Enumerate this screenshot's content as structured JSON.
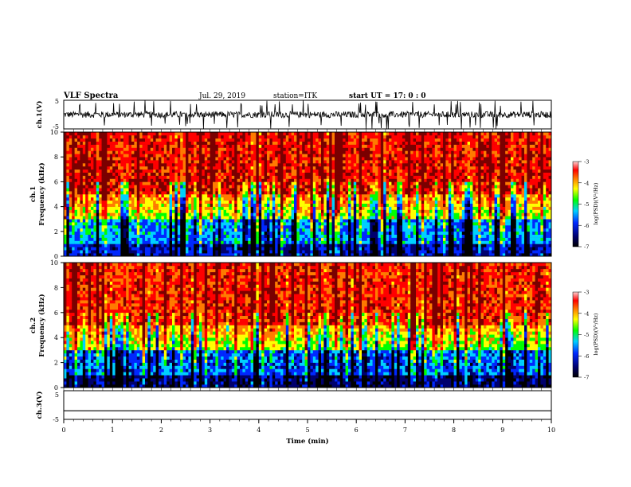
{
  "header": {
    "title": "VLF Spectra",
    "date": "Jul. 29, 2019",
    "station": "station=ITK",
    "start": "start  UT =  17: 0 : 0"
  },
  "chart_data": [
    {
      "type": "line",
      "panel": "ch1-waveform",
      "ylabel": "ch.1(V)",
      "ylim": [
        -5,
        5
      ],
      "yticks": [
        5,
        -5
      ],
      "xlim": [
        0,
        10
      ],
      "description_of_shape": "noisy baseline near 0 V with frequent spikes to about ±5 V",
      "baseline_v": 0,
      "spike_range_v": [
        -5,
        5
      ]
    },
    {
      "type": "heatmap",
      "panel": "ch1-spectrogram",
      "ylabel": "ch.1",
      "ylabel2": "Frequency (kHz)",
      "ylim": [
        0,
        10
      ],
      "yticks": [
        0,
        2,
        4,
        6,
        8,
        10
      ],
      "xlim": [
        0,
        10
      ],
      "colorbar": {
        "label": "log(PSD)(V²/Hz)",
        "range": [
          -7,
          -3
        ],
        "ticks": [
          "-3",
          "-4",
          "-5",
          "-6",
          "-7"
        ],
        "colors": [
          "#7a0000",
          "#ff0000",
          "#ff7b00",
          "#ffff00",
          "#00ff00",
          "#00d0ff",
          "#0028ff",
          "#00006e",
          "#000000"
        ]
      },
      "band_levels_log_psd": {
        "0-1 kHz": -6.2,
        "1-3 kHz": -5.6,
        "3-5 kHz": -4.8,
        "5-10 kHz": -3.6
      }
    },
    {
      "type": "heatmap",
      "panel": "ch2-spectrogram",
      "ylabel": "ch.2",
      "ylabel2": "Frequency (kHz)",
      "ylim": [
        0,
        10
      ],
      "yticks": [
        0,
        2,
        4,
        6,
        8,
        10
      ],
      "xlim": [
        0,
        10
      ],
      "colorbar": {
        "label": "log(PSD)(V²/Hz)",
        "range": [
          -7,
          -3
        ],
        "ticks": [
          "-3",
          "-4",
          "-5",
          "-6",
          "-7"
        ],
        "colors": [
          "#7a0000",
          "#ff0000",
          "#ff7b00",
          "#ffff00",
          "#00ff00",
          "#00d0ff",
          "#0028ff",
          "#00006e",
          "#000000"
        ]
      },
      "band_levels_log_psd": {
        "0-1 kHz": -6.4,
        "1-3 kHz": -5.8,
        "3-5 kHz": -4.9,
        "5-10 kHz": -3.7
      }
    },
    {
      "type": "line",
      "panel": "ch3-waveform",
      "ylabel": "ch.3(V)",
      "ylim": [
        -5,
        5
      ],
      "yticks": [
        5,
        -5
      ],
      "xlim": [
        0,
        10
      ],
      "xlabel": "Time (min)",
      "xticks": [
        "0",
        "1",
        "2",
        "3",
        "4",
        "5",
        "6",
        "7",
        "8",
        "9",
        "10"
      ],
      "baseline_v": -2,
      "description_of_shape": "flat line at about -2 V"
    }
  ],
  "colors": {
    "axis": "#000000",
    "background": "#ffffff"
  }
}
